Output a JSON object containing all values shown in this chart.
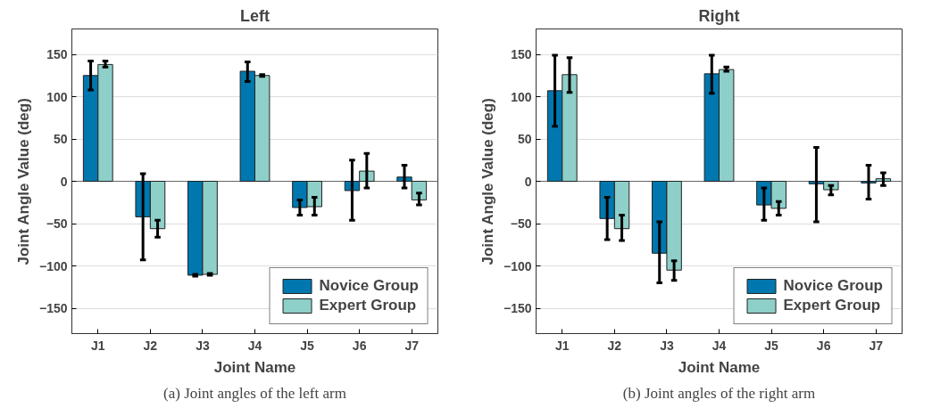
{
  "chart_data": [
    {
      "type": "bar",
      "title": "Left",
      "xlabel": "Joint Name",
      "ylabel": "Joint Angle Value (deg)",
      "categories": [
        "J1",
        "J2",
        "J3",
        "J4",
        "J5",
        "J6",
        "J7"
      ],
      "ylim": [
        -180,
        180
      ],
      "yticks": [
        -150,
        -100,
        -50,
        0,
        50,
        100,
        150
      ],
      "grid": "y",
      "legend": "bottom right",
      "annotations": [
        "(a) Joint angles of the left arm"
      ],
      "series": [
        {
          "name": "Novice Group",
          "color": "#0077ae",
          "values": [
            125,
            -42,
            -111,
            130,
            -31,
            -11,
            5
          ],
          "errors": [
            [
              108,
              142
            ],
            [
              -93,
              9
            ],
            [
              -112,
              -110
            ],
            [
              118,
              141
            ],
            [
              -40,
              -22
            ],
            [
              -46,
              25
            ],
            [
              -8,
              19
            ]
          ]
        },
        {
          "name": "Expert Group",
          "color": "#8ecfc9",
          "values": [
            138,
            -56,
            -110,
            125,
            -30,
            12,
            -22
          ],
          "errors": [
            [
              135,
              142
            ],
            [
              -66,
              -46
            ],
            [
              -111,
              -109
            ],
            [
              124,
              126
            ],
            [
              -40,
              -19
            ],
            [
              -8,
              33
            ],
            [
              -28,
              -14
            ]
          ]
        }
      ]
    },
    {
      "type": "bar",
      "title": "Right",
      "xlabel": "Joint Name",
      "ylabel": "Joint Angle Value (deg)",
      "categories": [
        "J1",
        "J2",
        "J3",
        "J4",
        "J5",
        "J6",
        "J7"
      ],
      "ylim": [
        -180,
        180
      ],
      "yticks": [
        -150,
        -100,
        -50,
        0,
        50,
        100,
        150
      ],
      "grid": "y",
      "legend": "bottom right",
      "annotations": [
        "(b) Joint angles of the right arm"
      ],
      "series": [
        {
          "name": "Novice Group",
          "color": "#0077ae",
          "values": [
            107,
            -44,
            -85,
            127,
            -28,
            -3,
            -2
          ],
          "errors": [
            [
              65,
              149
            ],
            [
              -69,
              -19
            ],
            [
              -120,
              -48
            ],
            [
              104,
              149
            ],
            [
              -46,
              -8
            ],
            [
              -48,
              40
            ],
            [
              -21,
              19
            ]
          ]
        },
        {
          "name": "Expert Group",
          "color": "#8ecfc9",
          "values": [
            126,
            -56,
            -105,
            132,
            -32,
            -10,
            3
          ],
          "errors": [
            [
              105,
              146
            ],
            [
              -70,
              -40
            ],
            [
              -117,
              -94
            ],
            [
              130,
              135
            ],
            [
              -40,
              -24
            ],
            [
              -16,
              -5
            ],
            [
              -5,
              10
            ]
          ]
        }
      ]
    }
  ]
}
